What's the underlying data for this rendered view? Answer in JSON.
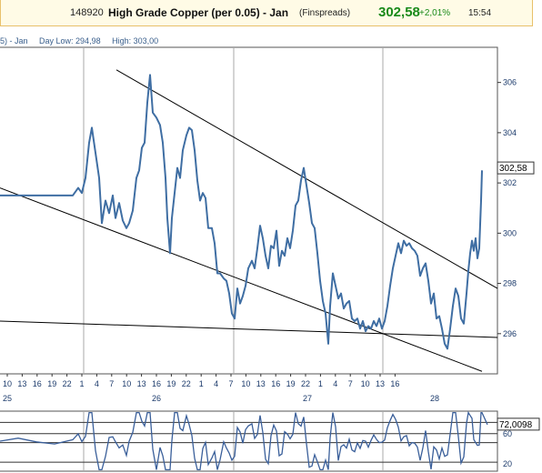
{
  "header": {
    "ticker": "148920",
    "name": "High Grade Copper (per 0.05) - Jan",
    "broker": "(Finspreads)",
    "price": "302,58",
    "change": "+2,01%",
    "time": "15:54"
  },
  "info": {
    "series_label": "5) - Jan",
    "day_low": "Day Low: 294,98",
    "high": "High: 303,00"
  },
  "chart_data": [
    {
      "type": "line",
      "ylim": [
        294.4,
        307.4
      ],
      "y_ticks": [
        "306",
        "304",
        "302",
        "300",
        "298",
        "296"
      ],
      "y_tick_values": [
        306,
        304,
        302,
        300,
        298,
        296
      ],
      "last_value_label": "302,58",
      "last_value": 302.58,
      "x_hour_labels": [
        "10",
        "13",
        "16",
        "19",
        "22",
        "1",
        "4",
        "7",
        "10",
        "13",
        "16",
        "19",
        "22",
        "1",
        "4",
        "7",
        "10",
        "13",
        "16",
        "19",
        "22",
        "1",
        "4",
        "7",
        "10",
        "13",
        "16"
      ],
      "x_day_labels": [
        "25",
        "26",
        "27",
        "28"
      ],
      "series_points": [
        [
          0,
          301.5
        ],
        [
          20,
          301.5
        ],
        [
          40,
          301.5
        ],
        [
          60,
          301.5
        ],
        [
          80,
          301.5
        ],
        [
          86,
          301.8
        ],
        [
          90,
          301.6
        ],
        [
          94,
          302.2
        ],
        [
          98,
          303.6
        ],
        [
          101,
          304.2
        ],
        [
          105,
          303.2
        ],
        [
          109,
          302.2
        ],
        [
          112,
          300.4
        ],
        [
          116,
          301.3
        ],
        [
          120,
          300.8
        ],
        [
          124,
          301.5
        ],
        [
          127,
          300.6
        ],
        [
          131,
          301.2
        ],
        [
          135,
          300.5
        ],
        [
          139,
          300.2
        ],
        [
          142,
          300.4
        ],
        [
          146,
          300.9
        ],
        [
          150,
          302.2
        ],
        [
          153,
          302.5
        ],
        [
          156,
          303.4
        ],
        [
          159,
          303.6
        ],
        [
          162,
          305.2
        ],
        [
          165,
          306.3
        ],
        [
          168,
          304.8
        ],
        [
          172,
          304.6
        ],
        [
          176,
          304.3
        ],
        [
          179,
          303.6
        ],
        [
          182,
          302.2
        ],
        [
          184,
          300.6
        ],
        [
          187,
          299.2
        ],
        [
          189,
          300.6
        ],
        [
          192,
          301.6
        ],
        [
          195,
          302.6
        ],
        [
          198,
          302.2
        ],
        [
          201,
          303.3
        ],
        [
          205,
          303.9
        ],
        [
          208,
          304.2
        ],
        [
          211,
          304.1
        ],
        [
          214,
          303.3
        ],
        [
          217,
          302.1
        ],
        [
          220,
          301.3
        ],
        [
          223,
          301.6
        ],
        [
          226,
          301.4
        ],
        [
          229,
          300.2
        ],
        [
          233,
          300.2
        ],
        [
          236,
          299.6
        ],
        [
          239,
          298.4
        ],
        [
          242,
          298.4
        ],
        [
          246,
          298.2
        ],
        [
          249,
          298.1
        ],
        [
          252,
          297.6
        ],
        [
          255,
          296.8
        ],
        [
          258,
          296.6
        ],
        [
          261,
          297.8
        ],
        [
          264,
          297.2
        ],
        [
          267,
          297.5
        ],
        [
          270,
          297.9
        ],
        [
          273,
          298.6
        ],
        [
          277,
          298.9
        ],
        [
          280,
          298.6
        ],
        [
          283,
          299.4
        ],
        [
          286,
          300.3
        ],
        [
          289,
          299.8
        ],
        [
          292,
          299.1
        ],
        [
          295,
          298.6
        ],
        [
          298,
          299.5
        ],
        [
          301,
          299.4
        ],
        [
          304,
          300.1
        ],
        [
          307,
          298.7
        ],
        [
          310,
          299.3
        ],
        [
          313,
          299.1
        ],
        [
          316,
          299.8
        ],
        [
          319,
          299.4
        ],
        [
          322,
          300.1
        ],
        [
          325,
          301.1
        ],
        [
          328,
          301.3
        ],
        [
          331,
          302.1
        ],
        [
          334,
          302.6
        ],
        [
          337,
          301.9
        ],
        [
          340,
          301.2
        ],
        [
          343,
          300.4
        ],
        [
          346,
          300.2
        ],
        [
          349,
          299.2
        ],
        [
          352,
          298.1
        ],
        [
          355,
          297.3
        ],
        [
          358,
          296.8
        ],
        [
          361,
          295.6
        ],
        [
          363,
          297.1
        ],
        [
          366,
          298.4
        ],
        [
          369,
          297.9
        ],
        [
          372,
          297.4
        ],
        [
          375,
          297.6
        ],
        [
          378,
          297.0
        ],
        [
          381,
          297.2
        ],
        [
          384,
          297.3
        ],
        [
          387,
          296.6
        ],
        [
          390,
          296.5
        ],
        [
          393,
          296.6
        ],
        [
          396,
          296.2
        ],
        [
          399,
          296.5
        ],
        [
          402,
          296.1
        ],
        [
          405,
          296.3
        ],
        [
          408,
          296.2
        ],
        [
          411,
          296.5
        ],
        [
          414,
          296.3
        ],
        [
          417,
          296.6
        ],
        [
          420,
          296.2
        ],
        [
          423,
          296.5
        ],
        [
          426,
          297.1
        ],
        [
          429,
          297.9
        ],
        [
          432,
          298.6
        ],
        [
          435,
          299.1
        ],
        [
          438,
          299.6
        ],
        [
          441,
          299.2
        ],
        [
          444,
          299.7
        ],
        [
          447,
          299.5
        ],
        [
          450,
          299.6
        ],
        [
          453,
          299.4
        ],
        [
          456,
          299.3
        ],
        [
          459,
          299.1
        ],
        [
          462,
          298.3
        ],
        [
          465,
          298.6
        ],
        [
          468,
          298.8
        ],
        [
          471,
          298.1
        ],
        [
          474,
          297.2
        ],
        [
          477,
          297.6
        ],
        [
          480,
          296.6
        ],
        [
          483,
          296.7
        ],
        [
          486,
          296.2
        ],
        [
          489,
          295.6
        ],
        [
          492,
          295.4
        ],
        [
          495,
          296.2
        ],
        [
          498,
          297.1
        ],
        [
          501,
          297.8
        ],
        [
          504,
          297.5
        ],
        [
          507,
          296.6
        ],
        [
          510,
          296.4
        ],
        [
          513,
          297.6
        ],
        [
          515,
          298.5
        ],
        [
          517,
          299.2
        ],
        [
          519,
          299.7
        ],
        [
          521,
          299.3
        ],
        [
          523,
          299.8
        ],
        [
          525,
          299.0
        ],
        [
          527,
          299.4
        ],
        [
          529,
          301.3
        ],
        [
          530,
          302.5
        ]
      ],
      "trendlines": [
        [
          [
            128,
            306.5
          ],
          [
            547,
            297.8
          ]
        ],
        [
          [
            0,
            301.8
          ],
          [
            530,
            294.5
          ]
        ],
        [
          [
            0,
            296.5
          ],
          [
            547,
            295.85
          ]
        ]
      ]
    },
    {
      "type": "line",
      "ylim": [
        10,
        90
      ],
      "y_ticks": [
        "60",
        "20"
      ],
      "y_tick_values": [
        60,
        20
      ],
      "last_value_label": "72,0098",
      "last_value": 72.0098,
      "reference_lines": [
        75,
        60,
        48,
        22
      ]
    }
  ],
  "colors": {
    "price_line": "#3f6ea3",
    "indicator_line": "#3a5f9a",
    "trendline": "#000000",
    "grid": "#aaaaaa",
    "up": "#1a8a1a",
    "axis_text": "#1b3a6b"
  }
}
